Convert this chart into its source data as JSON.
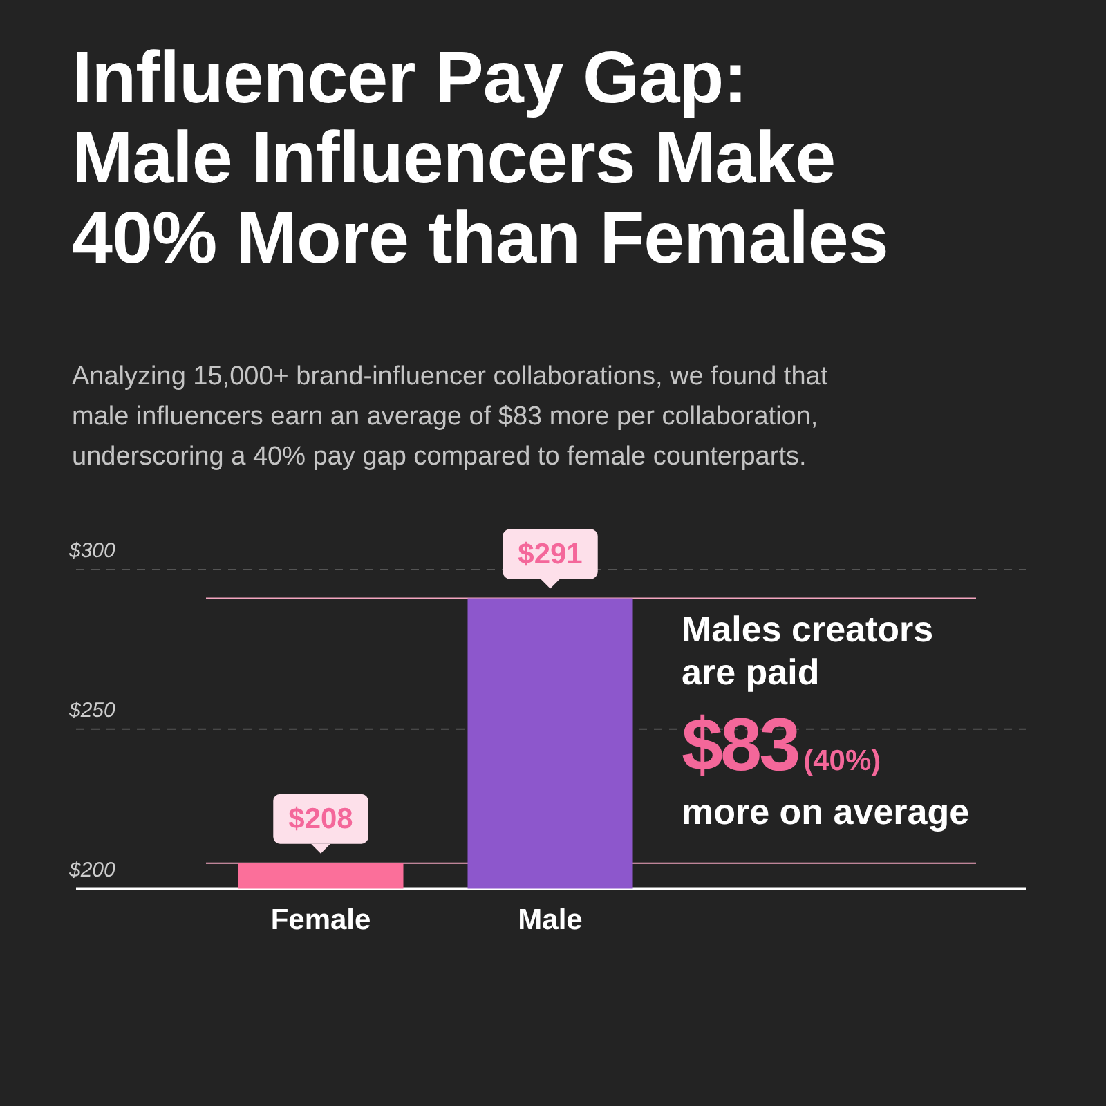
{
  "chart_data": {
    "type": "bar",
    "title": "Influencer Pay Gap:\nMale Influencers Make\n40% More than Females",
    "subtitle": "Analyzing 15,000+ brand-influencer collaborations, we found that\nmale influencers earn an average of $83 more per collaboration,\nunderscoring a 40% pay gap compared to female counterparts.",
    "categories": [
      "Female",
      "Male"
    ],
    "values": [
      208,
      291
    ],
    "colors": [
      "#fb6f9a",
      "#8d57cc"
    ],
    "value_labels": [
      "$208",
      "$291"
    ],
    "ylim": [
      200,
      300
    ],
    "yticks": [
      {
        "value": 200,
        "label": "$200"
      },
      {
        "value": 250,
        "label": "$250"
      },
      {
        "value": 300,
        "label": "$300"
      }
    ],
    "grid": "y",
    "ref_lines": [
      {
        "axis": "y",
        "value": 291,
        "color": "#f3a6c0"
      },
      {
        "axis": "y",
        "value": 208,
        "color": "#f3a6c0"
      }
    ],
    "annotations": [
      "Males creators\nare paid",
      "$83",
      "(40%)",
      "more on average"
    ]
  }
}
